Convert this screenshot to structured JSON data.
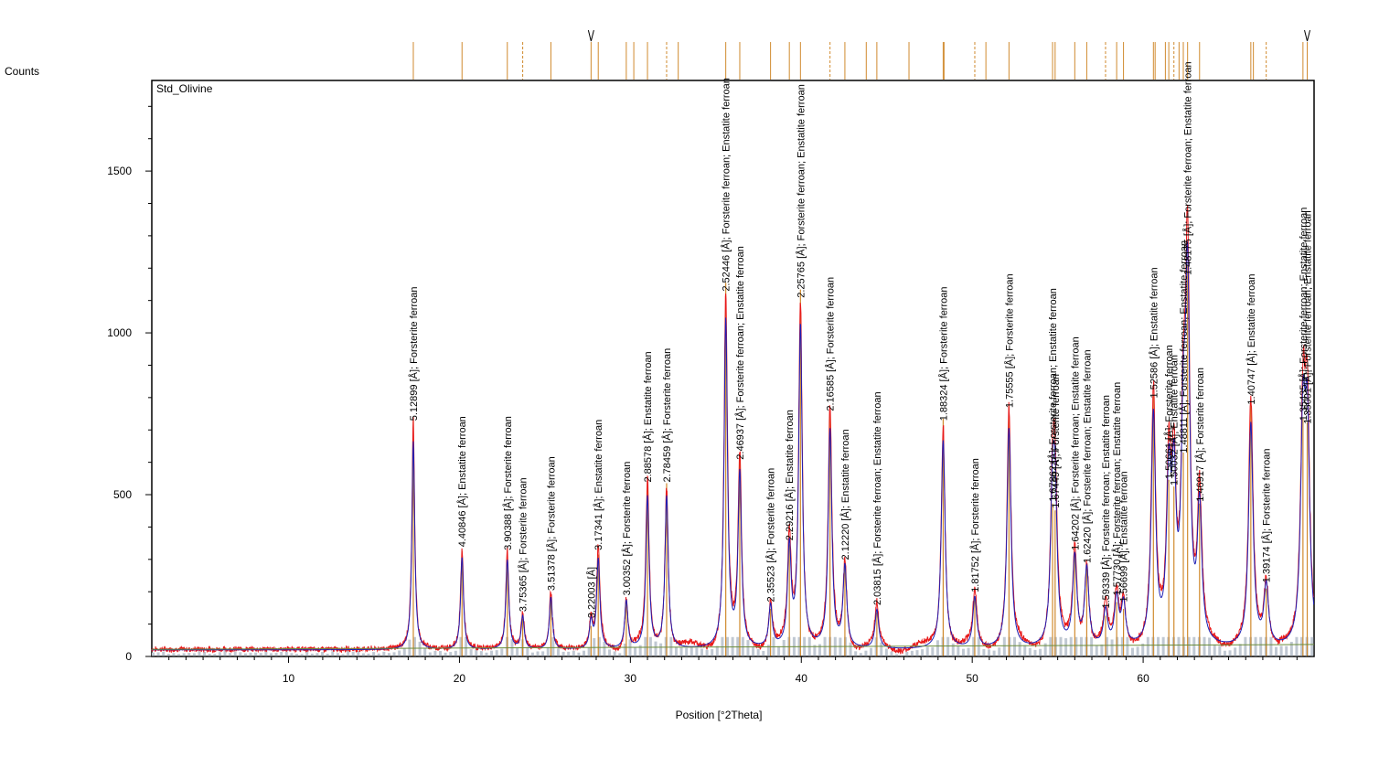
{
  "chart_data": {
    "type": "line",
    "title": "Std_Olivine",
    "xlabel": "Position [°2Theta]",
    "ylabel": "Counts",
    "xlim": [
      2,
      70
    ],
    "ylim": [
      0,
      1780
    ],
    "xticks": [
      10,
      20,
      30,
      40,
      50,
      60
    ],
    "yticks": [
      0,
      500,
      1000,
      1500
    ],
    "colors": {
      "observed": "#e8191a",
      "calculated": "#1f1fb4",
      "reference_stick": "#d08a2e",
      "background": "#c0c8d2",
      "frame": "#000000"
    },
    "peaks": [
      {
        "x": 17.3,
        "h": 700,
        "label": "5.12899 [Å]; Forsterite ferroan"
      },
      {
        "x": 20.15,
        "h": 310,
        "label": "4.40846 [Å]; Enstatite ferroan"
      },
      {
        "x": 22.8,
        "h": 300,
        "label": "3.90388 [Å]; Forsterite ferroan"
      },
      {
        "x": 23.7,
        "h": 110,
        "label": "3.75365 [Å]; Forsterite ferroan"
      },
      {
        "x": 25.35,
        "h": 175,
        "label": "3.51378 [Å]; Forsterite ferroan"
      },
      {
        "x": 27.7,
        "h": 90,
        "label": "3.22003 [Å]"
      },
      {
        "x": 28.12,
        "h": 300,
        "label": "3.17341 [Å]; Enstatite ferroan"
      },
      {
        "x": 29.76,
        "h": 160,
        "label": "3.00352 [Å]; Forsterite ferroan"
      },
      {
        "x": 31.0,
        "h": 510,
        "label": "2.88578 [Å]; Enstatite ferroan"
      },
      {
        "x": 32.12,
        "h": 510,
        "label": "2.78459 [Å]; Forsterite ferroan"
      },
      {
        "x": 35.58,
        "h": 1100,
        "label": "2.52446 [Å]; Forsterite ferroan; Enstatite ferroan"
      },
      {
        "x": 36.4,
        "h": 580,
        "label": "2.46937 [Å]; Forsterite ferroan; Enstatite ferroan"
      },
      {
        "x": 38.2,
        "h": 140,
        "label": "2.35523 [Å]; Forsterite ferroan"
      },
      {
        "x": 39.3,
        "h": 330,
        "label": "2.29216 [Å]; Enstatite ferroan"
      },
      {
        "x": 39.95,
        "h": 1080,
        "label": "2.25765 [Å]; Forsterite ferroan; Enstatite ferroan"
      },
      {
        "x": 41.68,
        "h": 730,
        "label": "2.16585 [Å]; Forsterite ferroan"
      },
      {
        "x": 42.55,
        "h": 270,
        "label": "2.12220 [Å]; Enstatite ferroan"
      },
      {
        "x": 44.42,
        "h": 130,
        "label": "2.03815 [Å]; Forsterite ferroan; Enstatite ferroan"
      },
      {
        "x": 48.3,
        "h": 700,
        "label": "1.88324 [Å]; Forsterite ferroan"
      },
      {
        "x": 50.15,
        "h": 170,
        "label": "1.81752 [Å]; Forsterite ferroan"
      },
      {
        "x": 52.15,
        "h": 740,
        "label": "1.75555 [Å]; Forsterite ferroan"
      },
      {
        "x": 54.7,
        "h": 450,
        "label": "1.67862 [Å]; Forsterite ferroan; Enstatite ferroan"
      },
      {
        "x": 54.85,
        "h": 430,
        "label": "1.67449 [Å]; Forsterite ferroan"
      },
      {
        "x": 56.0,
        "h": 300,
        "label": "1.64202 [Å]; Forsterite ferroan; Enstatite ferroan"
      },
      {
        "x": 56.7,
        "h": 260,
        "label": "1.62420 [Å]; Forsterite ferroan; Enstatite ferroan"
      },
      {
        "x": 57.8,
        "h": 120,
        "label": "1.59339 [Å]; Forsterite ferroan; Enstatite ferroan"
      },
      {
        "x": 58.45,
        "h": 160,
        "label": "1.57730 [Å]; Forsterite ferroan; Enstatite ferroan"
      },
      {
        "x": 58.85,
        "h": 140,
        "label": "1.56699 [Å]; Enstatite ferroan"
      },
      {
        "x": 60.6,
        "h": 770,
        "label": "1.52586 [Å]; Enstatite ferroan"
      },
      {
        "x": 61.5,
        "h": 520,
        "label": "1.50661 [Å]; Forsterite ferroan"
      },
      {
        "x": 61.8,
        "h": 500,
        "label": "1.50032 [Å]; Enstatite ferroan"
      },
      {
        "x": 62.35,
        "h": 600,
        "label": "1.48811 [Å]; Forsterite ferroan; Enstatite ferroan"
      },
      {
        "x": 62.6,
        "h": 1150,
        "label": "1.48175 [Å]; Forsterite ferroan; Enstatite ferroan"
      },
      {
        "x": 63.3,
        "h": 450,
        "label": "1.46917 [Å]; Forsterite ferroan"
      },
      {
        "x": 66.3,
        "h": 750,
        "label": "1.40747 [Å]; Enstatite ferroan"
      },
      {
        "x": 67.2,
        "h": 200,
        "label": "1.39174 [Å]; Forsterite ferroan"
      },
      {
        "x": 69.35,
        "h": 700,
        "label": "1.35435 [Å]; Forsterite ferroan; Enstatite ferroan"
      },
      {
        "x": 69.6,
        "h": 690,
        "label": "1.35001 [Å]; Forsterite ferroan; Enstatite ferroan"
      }
    ],
    "reference_positions": [
      17.3,
      20.15,
      22.8,
      23.7,
      25.35,
      27.7,
      28.12,
      29.76,
      30.2,
      31.0,
      32.12,
      32.8,
      35.58,
      36.4,
      38.2,
      39.3,
      39.95,
      41.68,
      42.55,
      43.8,
      44.42,
      46.3,
      48.3,
      48.35,
      50.15,
      50.8,
      52.15,
      54.7,
      54.85,
      56.0,
      56.7,
      57.8,
      58.45,
      58.85,
      60.6,
      60.7,
      61.3,
      61.5,
      61.8,
      62.1,
      62.35,
      62.6,
      63.3,
      66.3,
      66.45,
      67.2,
      69.35,
      69.6
    ],
    "reference_markers": [
      27.7,
      69.6
    ],
    "background_level": 22
  }
}
